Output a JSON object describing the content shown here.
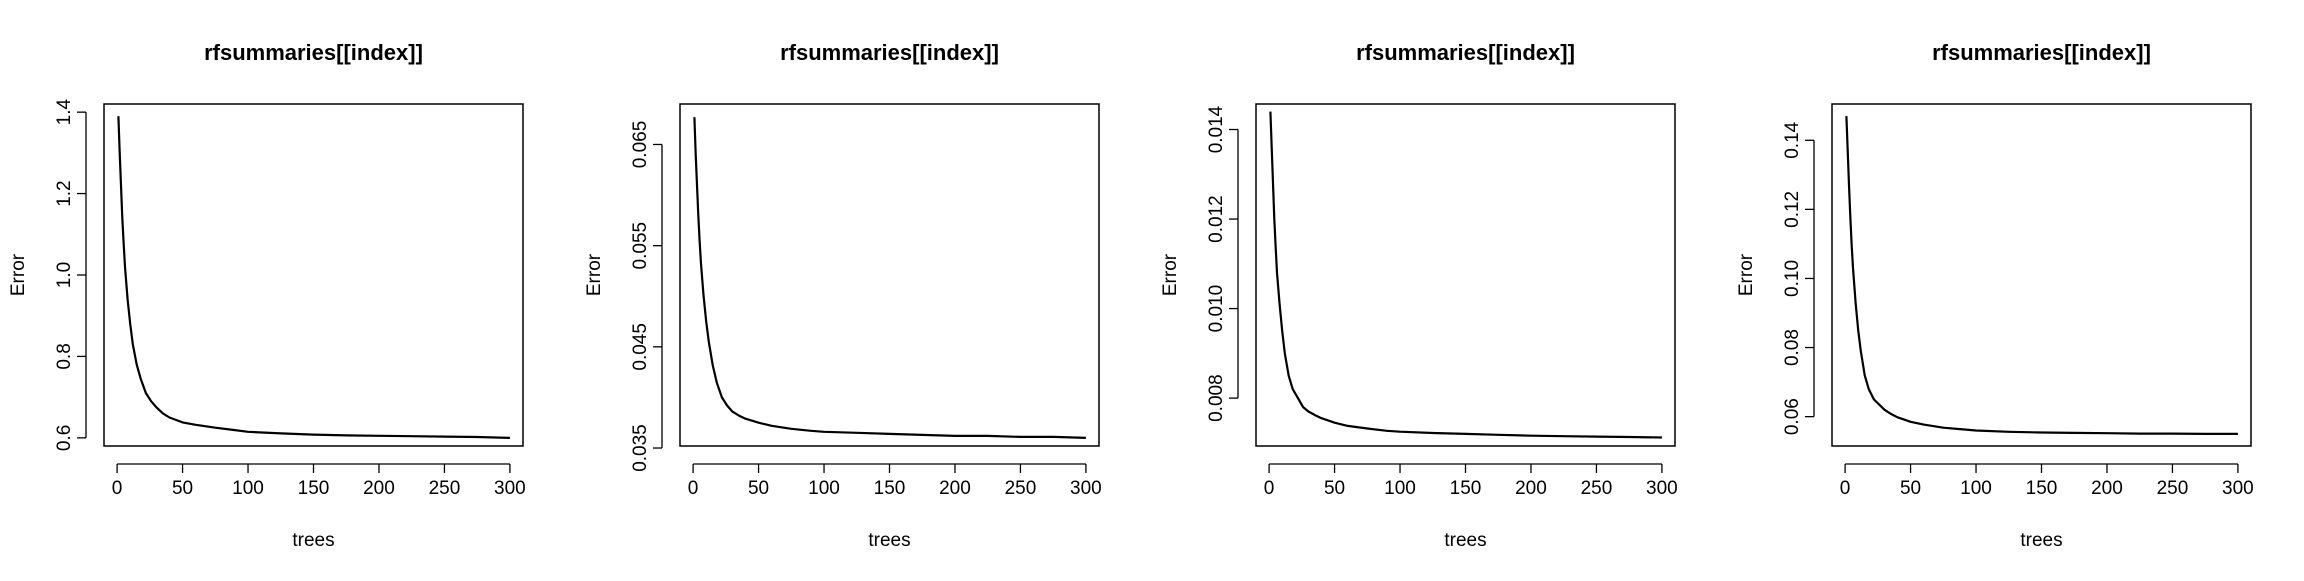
{
  "chart_data": [
    {
      "type": "line",
      "title": "rfsummaries[[index]]",
      "xlabel": "trees",
      "ylabel": "Error",
      "xlim": [
        -10,
        310
      ],
      "ylim": [
        0.58,
        1.42
      ],
      "xticks": [
        0,
        50,
        100,
        150,
        200,
        250,
        300
      ],
      "xtick_labels": [
        "0",
        "50",
        "100",
        "150",
        "200",
        "250",
        "300"
      ],
      "yticks": [
        0.6,
        0.8,
        1.0,
        1.2,
        1.4
      ],
      "ytick_labels": [
        "0.6",
        "0.8",
        "1.0",
        "1.2",
        "1.4"
      ],
      "grid": false,
      "series": [
        {
          "x": [
            1,
            2,
            3,
            4,
            5,
            6,
            8,
            10,
            12,
            15,
            18,
            22,
            26,
            30,
            35,
            40,
            50,
            60,
            75,
            90,
            100,
            125,
            150,
            175,
            200,
            225,
            250,
            275,
            300
          ],
          "y": [
            1.39,
            1.3,
            1.22,
            1.14,
            1.08,
            1.02,
            0.94,
            0.88,
            0.83,
            0.78,
            0.745,
            0.71,
            0.69,
            0.675,
            0.66,
            0.65,
            0.638,
            0.632,
            0.625,
            0.619,
            0.615,
            0.611,
            0.608,
            0.606,
            0.605,
            0.604,
            0.603,
            0.602,
            0.6
          ]
        }
      ]
    },
    {
      "type": "line",
      "title": "rfsummaries[[index]]",
      "xlabel": "trees",
      "ylabel": "Error",
      "xlim": [
        -10,
        310
      ],
      "ylim": [
        0.0352,
        0.069
      ],
      "xticks": [
        0,
        50,
        100,
        150,
        200,
        250,
        300
      ],
      "xtick_labels": [
        "0",
        "50",
        "100",
        "150",
        "200",
        "250",
        "300"
      ],
      "yticks": [
        0.035,
        0.045,
        0.055,
        0.065
      ],
      "ytick_labels": [
        "0.035",
        "0.045",
        "0.055",
        "0.065"
      ],
      "grid": false,
      "series": [
        {
          "x": [
            1,
            2,
            3,
            4,
            5,
            6,
            8,
            10,
            12,
            15,
            18,
            22,
            26,
            30,
            35,
            40,
            50,
            60,
            75,
            90,
            100,
            125,
            150,
            175,
            200,
            225,
            250,
            275,
            300
          ],
          "y": [
            0.0677,
            0.064,
            0.061,
            0.058,
            0.0555,
            0.0532,
            0.05,
            0.0475,
            0.0455,
            0.0432,
            0.0415,
            0.04,
            0.0392,
            0.0386,
            0.0382,
            0.0379,
            0.0375,
            0.0372,
            0.0369,
            0.0367,
            0.0366,
            0.0365,
            0.0364,
            0.0363,
            0.0362,
            0.0362,
            0.0361,
            0.0361,
            0.036
          ]
        }
      ]
    },
    {
      "type": "line",
      "title": "rfsummaries[[index]]",
      "xlabel": "trees",
      "ylabel": "Error",
      "xlim": [
        -10,
        310
      ],
      "ylim": [
        0.00693,
        0.01457
      ],
      "xticks": [
        0,
        50,
        100,
        150,
        200,
        250,
        300
      ],
      "xtick_labels": [
        "0",
        "50",
        "100",
        "150",
        "200",
        "250",
        "300"
      ],
      "yticks": [
        0.008,
        0.01,
        0.012,
        0.014
      ],
      "ytick_labels": [
        "0.008",
        "0.010",
        "0.012",
        "0.014"
      ],
      "grid": false,
      "series": [
        {
          "x": [
            1,
            2,
            3,
            4,
            5,
            6,
            8,
            10,
            12,
            15,
            18,
            22,
            26,
            30,
            35,
            40,
            50,
            60,
            75,
            90,
            100,
            125,
            150,
            175,
            200,
            225,
            250,
            275,
            300
          ],
          "y": [
            0.0144,
            0.0136,
            0.0128,
            0.012,
            0.0114,
            0.0108,
            0.0101,
            0.0095,
            0.009,
            0.0085,
            0.0082,
            0.008,
            0.0078,
            0.0077,
            0.00762,
            0.00755,
            0.00745,
            0.00738,
            0.00732,
            0.00727,
            0.00725,
            0.00722,
            0.0072,
            0.00718,
            0.00716,
            0.00715,
            0.00714,
            0.00713,
            0.00712
          ]
        }
      ]
    },
    {
      "type": "line",
      "title": "rfsummaries[[index]]",
      "xlabel": "trees",
      "ylabel": "Error",
      "xlim": [
        -10,
        310
      ],
      "ylim": [
        0.0515,
        0.1505
      ],
      "xticks": [
        0,
        50,
        100,
        150,
        200,
        250,
        300
      ],
      "xtick_labels": [
        "0",
        "50",
        "100",
        "150",
        "200",
        "250",
        "300"
      ],
      "yticks": [
        0.06,
        0.08,
        0.1,
        0.12,
        0.14
      ],
      "ytick_labels": [
        "0.06",
        "0.08",
        "0.10",
        "0.12",
        "0.14"
      ],
      "grid": false,
      "series": [
        {
          "x": [
            1,
            2,
            3,
            4,
            5,
            6,
            8,
            10,
            12,
            15,
            18,
            22,
            26,
            30,
            35,
            40,
            50,
            60,
            75,
            90,
            100,
            125,
            150,
            175,
            200,
            225,
            250,
            275,
            300
          ],
          "y": [
            0.147,
            0.137,
            0.127,
            0.118,
            0.11,
            0.103,
            0.093,
            0.085,
            0.079,
            0.072,
            0.068,
            0.065,
            0.0635,
            0.062,
            0.0608,
            0.0598,
            0.0585,
            0.0577,
            0.0568,
            0.0563,
            0.056,
            0.0556,
            0.0554,
            0.0553,
            0.0552,
            0.0551,
            0.0551,
            0.055,
            0.055
          ]
        }
      ]
    }
  ]
}
